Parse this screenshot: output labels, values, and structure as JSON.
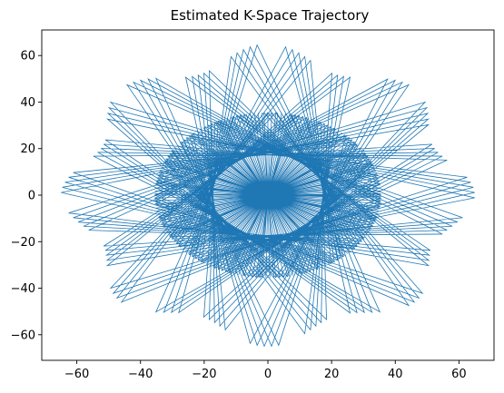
{
  "chart_data": {
    "type": "line",
    "title": "Estimated K-Space Trajectory",
    "xlabel": "",
    "ylabel": "",
    "xlim": [
      -71,
      71
    ],
    "ylim": [
      -71,
      71
    ],
    "xticks": [
      -60,
      -40,
      -20,
      0,
      20,
      40,
      60
    ],
    "yticks": [
      -60,
      -40,
      -20,
      0,
      20,
      40,
      60
    ],
    "grid": false,
    "series": [
      {
        "color": "#1f77b4",
        "trajectory": {
          "form": "radial zig-zag with rotating angle",
          "segments": 216,
          "angle_step_deg": 133,
          "inner_ring_radius": 35.5,
          "outer_radius_min": 56,
          "outer_radius_max": 65,
          "outer_lobes": 8
        }
      }
    ]
  }
}
